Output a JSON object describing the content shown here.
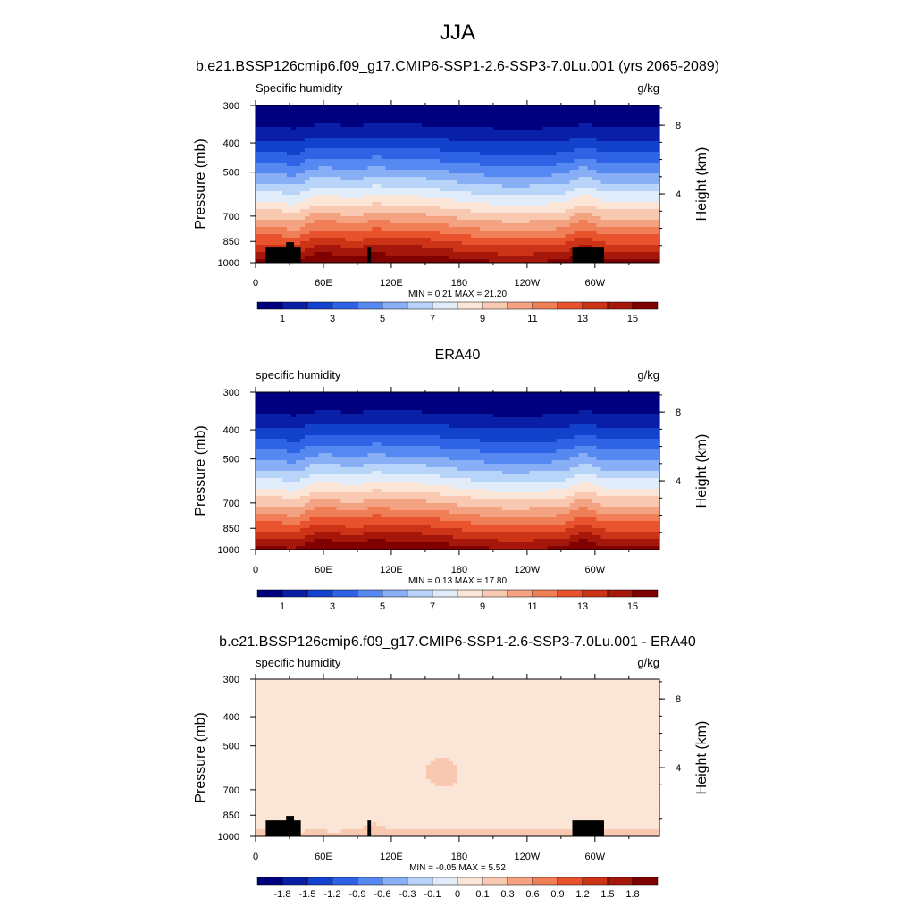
{
  "figure": {
    "title": "JJA",
    "subtitle": "b.e21.BSSP126cmip6.f09_g17.CMIP6-SSP1-2.6-SSP3-7.0Lu.001 (yrs 2065-2089)"
  },
  "chart_data": [
    {
      "type": "heatmap",
      "title": "",
      "left_label": "Specific humidity",
      "right_label": "g/kg",
      "ylabel": "Pressure (mb)",
      "ylabel_right": "Height (km)",
      "x_ticks": [
        "0",
        "60E",
        "120E",
        "180",
        "120W",
        "60W"
      ],
      "y_ticks": [
        "300",
        "400",
        "500",
        "700",
        "850",
        "1000"
      ],
      "y_right_ticks": [
        "8",
        "4"
      ],
      "stats": "MIN =   0.21  MAX =  21.20",
      "colorbar_labels": [
        "1",
        "3",
        "5",
        "7",
        "9",
        "11",
        "13",
        "15"
      ],
      "palette": "blue-white-red",
      "field": "humidity",
      "terrain": true
    },
    {
      "type": "heatmap",
      "title": "ERA40",
      "left_label": "specific humidity",
      "right_label": "g/kg",
      "ylabel": "Pressure (mb)",
      "ylabel_right": "Height (km)",
      "x_ticks": [
        "0",
        "60E",
        "120E",
        "180",
        "120W",
        "60W"
      ],
      "y_ticks": [
        "300",
        "400",
        "500",
        "700",
        "850",
        "1000"
      ],
      "y_right_ticks": [
        "8",
        "4"
      ],
      "stats": "MIN =   0.13  MAX =  17.80",
      "colorbar_labels": [
        "1",
        "3",
        "5",
        "7",
        "9",
        "11",
        "13",
        "15"
      ],
      "palette": "blue-white-red",
      "field": "humidity",
      "terrain": false
    },
    {
      "type": "heatmap",
      "title": "b.e21.BSSP126cmip6.f09_g17.CMIP6-SSP1-2.6-SSP3-7.0Lu.001 - ERA40",
      "left_label": "specific humidity",
      "right_label": "g/kg",
      "ylabel": "Pressure (mb)",
      "ylabel_right": "Height (km)",
      "x_ticks": [
        "0",
        "60E",
        "120E",
        "180",
        "120W",
        "60W"
      ],
      "y_ticks": [
        "300",
        "400",
        "500",
        "700",
        "850",
        "1000"
      ],
      "y_right_ticks": [
        "8",
        "4"
      ],
      "stats": "MIN =  -0.05  MAX =   5.52",
      "colorbar_labels": [
        "-1.8",
        "-1.5",
        "-1.2",
        "-0.9",
        "-0.6",
        "-0.3",
        "-0.1",
        "0",
        "0.1",
        "0.3",
        "0.6",
        "0.9",
        "1.2",
        "1.5",
        "1.8"
      ],
      "palette": "blue-white-red",
      "field": "difference",
      "terrain": true
    }
  ],
  "colors": {
    "palette": [
      "#00007f",
      "#0a1fa8",
      "#1241cc",
      "#2e63e6",
      "#5588f0",
      "#88aff5",
      "#b8d4f8",
      "#e0ecfa",
      "#fbe5d6",
      "#f8c8b0",
      "#f4a382",
      "#f07f58",
      "#e8532e",
      "#cc3317",
      "#a5170a",
      "#7f0000"
    ],
    "terrain": "#000000"
  }
}
